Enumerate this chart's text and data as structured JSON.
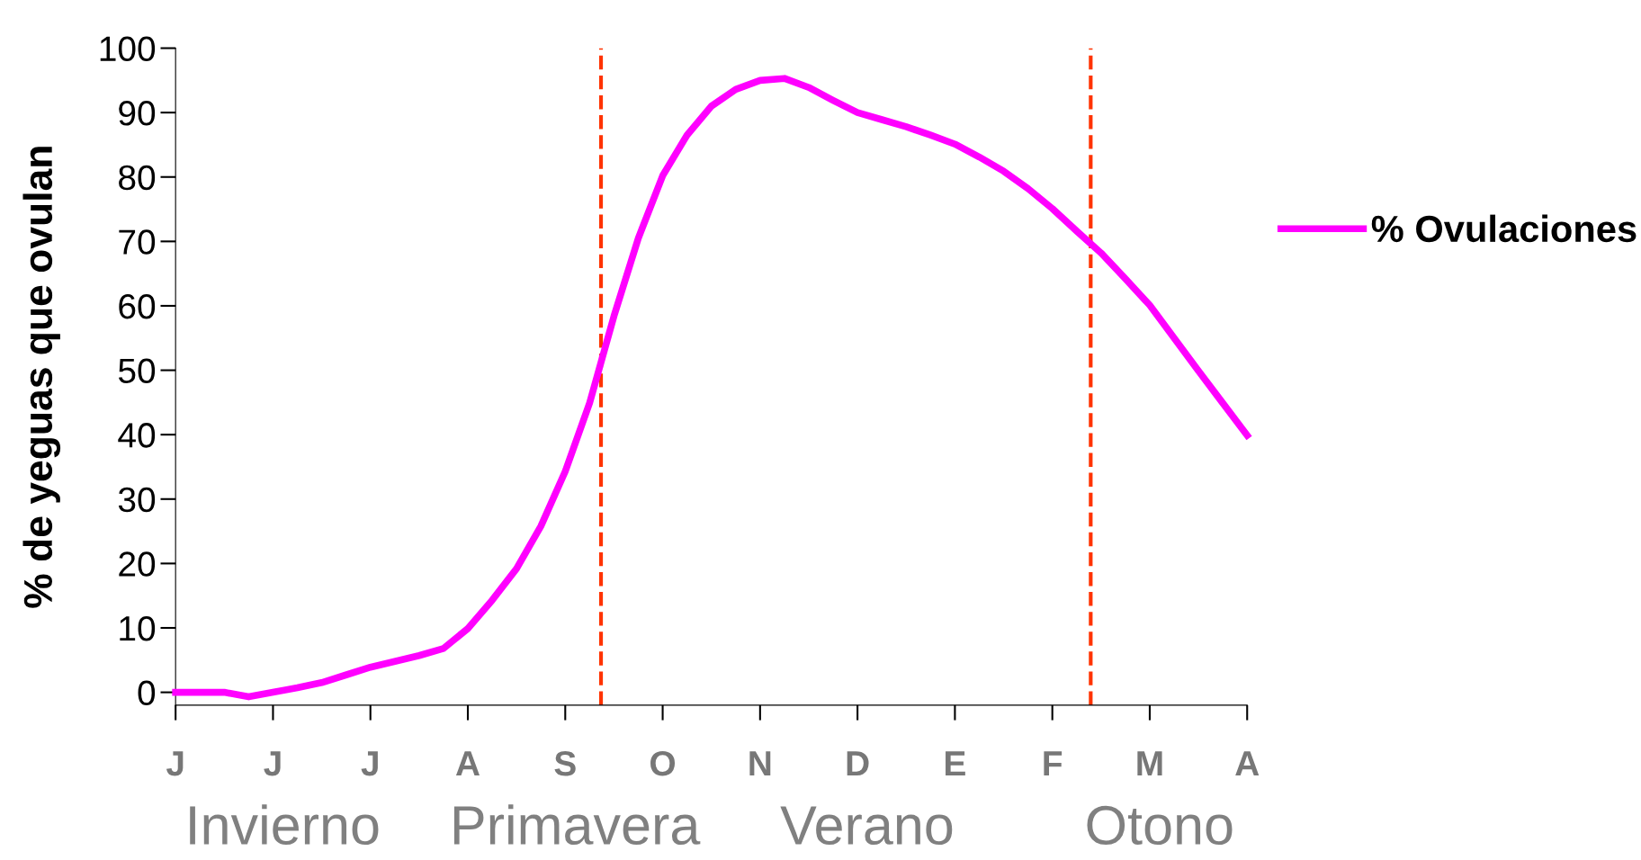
{
  "chart_data": {
    "type": "line",
    "ylabel": "% de yeguas que ovulan",
    "categories": [
      "J",
      null,
      null,
      null,
      "J",
      null,
      null,
      null,
      "J",
      null,
      null,
      null,
      "A",
      null,
      null,
      null,
      "S",
      null,
      null,
      null,
      "O",
      null,
      null,
      null,
      "N",
      null,
      null,
      null,
      "D",
      null,
      null,
      null,
      "E",
      null,
      null,
      null,
      "F",
      null,
      null,
      null,
      "M",
      null,
      null,
      null,
      "A"
    ],
    "series": [
      {
        "name": "% Ovulaciones",
        "color": "#ff00ff",
        "values": [
          0,
          0,
          0,
          -0.7,
          0,
          0.7,
          1.5,
          2.7,
          3.9,
          4.8,
          5.7,
          6.8,
          9.9,
          14.3,
          19.2,
          25.8,
          34.3,
          44.9,
          58.4,
          70.5,
          80.2,
          86.5,
          91.0,
          93.6,
          95.0,
          95.3,
          93.9,
          91.9,
          90.0,
          88.9,
          87.8,
          86.5,
          85.1,
          83.1,
          80.9,
          78.2,
          75.1,
          71.6,
          68.2,
          64.2,
          60.1,
          55.0,
          49.9,
          44.9,
          39.9
        ]
      }
    ],
    "ylim": [
      -2,
      100
    ],
    "yticks": [
      0,
      10,
      20,
      30,
      40,
      50,
      60,
      70,
      80,
      90,
      100
    ],
    "annotations": [
      "Invierno",
      "Primavera",
      "Verano",
      "Otono"
    ],
    "grid": false,
    "legend": "right",
    "marker": "none",
    "line_style": "solid"
  }
}
